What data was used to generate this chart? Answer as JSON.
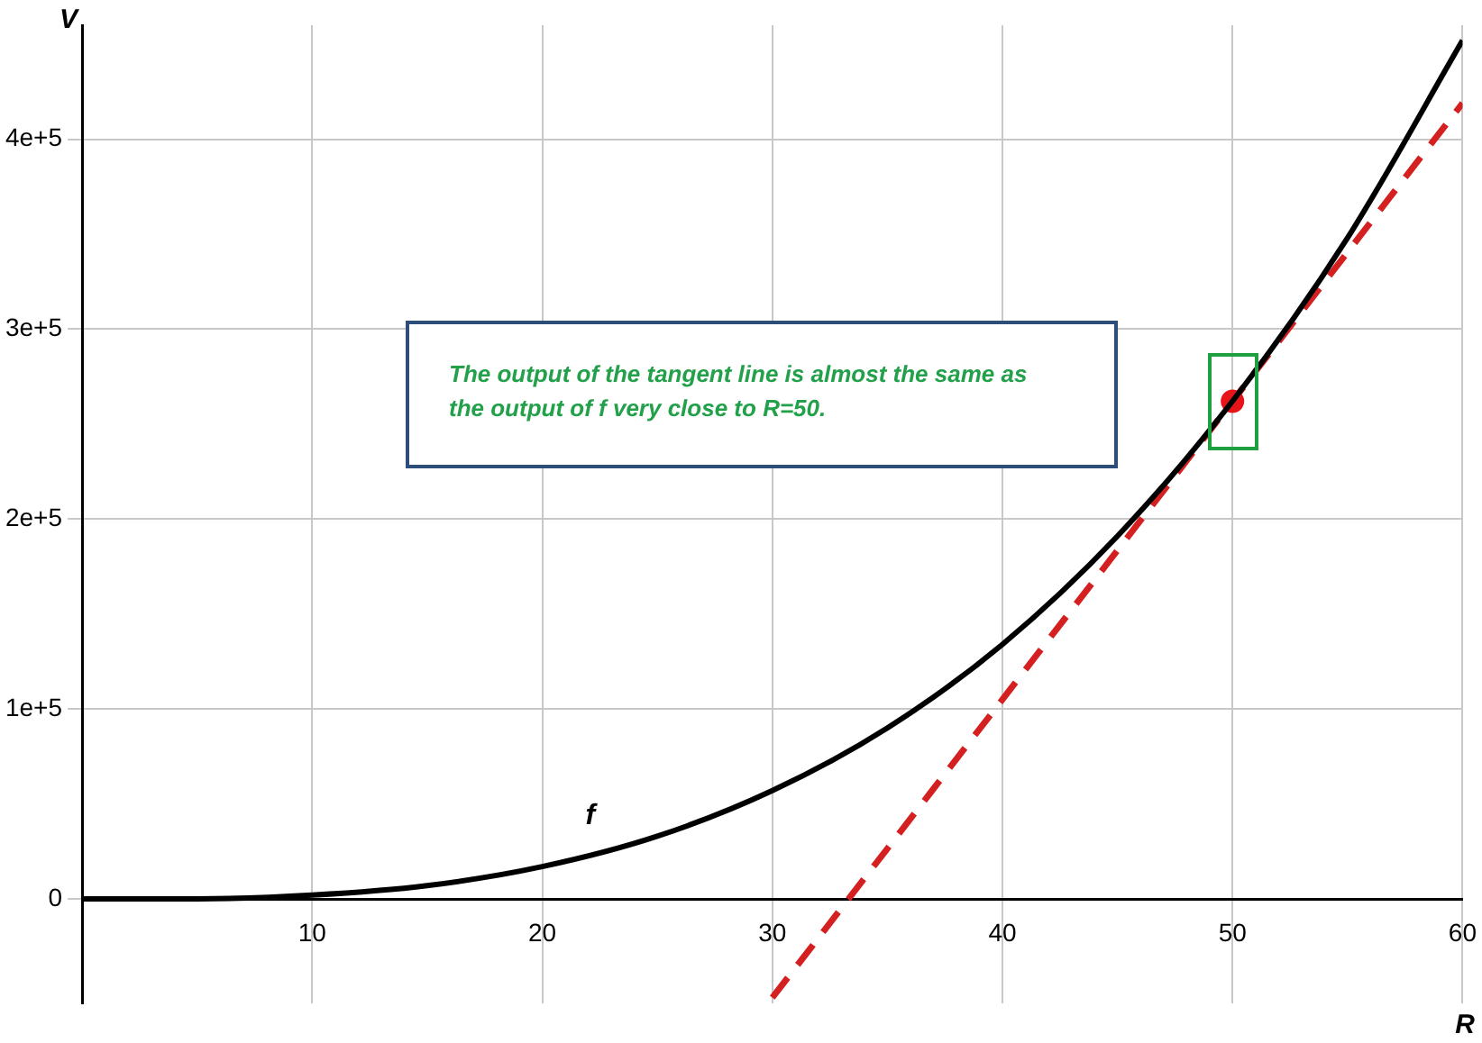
{
  "chart_data": {
    "type": "line",
    "xlabel": "R",
    "ylabel": "V",
    "xlim": [
      0,
      60
    ],
    "xticks": [
      {
        "value": 0,
        "label": null
      },
      10,
      20,
      30,
      40,
      50,
      60
    ],
    "ylim": [
      -55000,
      460000
    ],
    "yticks": [
      {
        "value": 0,
        "label": "0"
      },
      {
        "value": 100000,
        "label": "1e+5"
      },
      {
        "value": 200000,
        "label": "2e+5"
      },
      {
        "value": 300000,
        "label": "3e+5"
      },
      {
        "value": 400000,
        "label": "4e+5"
      }
    ],
    "grid": true,
    "legend": false,
    "annotations": [
      "The output of the tangent line is almost the same as the output of f very close to R=50."
    ],
    "series": [
      {
        "name": "f",
        "type": "line",
        "color": "#000000",
        "line_style": "solid",
        "x": [
          0,
          5,
          10,
          15,
          20,
          25,
          30,
          35,
          40,
          45,
          50,
          55,
          60
        ],
        "values": [
          0,
          0,
          2000,
          7000,
          17000,
          33000,
          57000,
          90000,
          134000,
          191000,
          262000,
          348000,
          452000
        ]
      },
      {
        "type": "line",
        "color": "#d42020",
        "line_style": "dashed",
        "x": [
          30,
          60
        ],
        "values": [
          -52000,
          419000
        ]
      },
      {
        "type": "scatter",
        "color": "#e8141a",
        "x": [
          50
        ],
        "values": [
          262000
        ]
      }
    ]
  }
}
